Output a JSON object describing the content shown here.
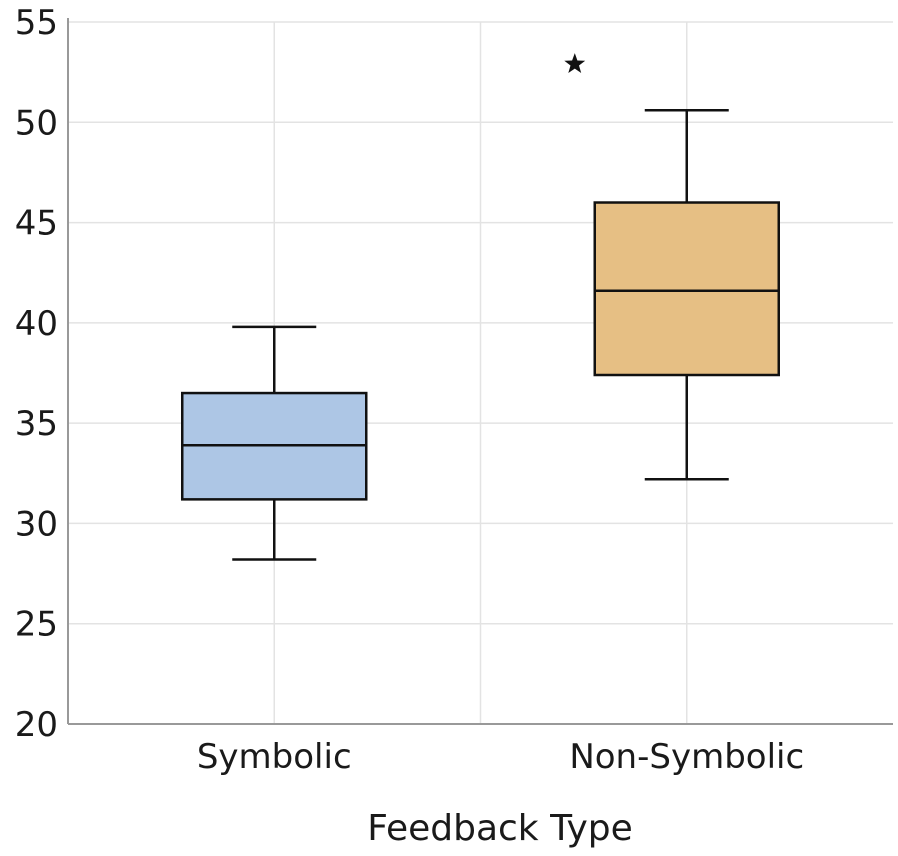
{
  "chart_data": {
    "type": "boxplot",
    "title": "",
    "xlabel": "Feedback Type",
    "ylabel": "",
    "ylim": [
      20,
      55
    ],
    "yticks": [
      20,
      25,
      30,
      35,
      40,
      45,
      50,
      55
    ],
    "grid": true,
    "categories": [
      "Symbolic",
      "Non-Symbolic"
    ],
    "boxes": [
      {
        "category": "Symbolic",
        "whisker_low": 28.2,
        "q1": 31.2,
        "median": 33.9,
        "q3": 36.5,
        "whisker_high": 39.8,
        "outliers": [],
        "color": "#adc6e5"
      },
      {
        "category": "Non-Symbolic",
        "whisker_low": 32.2,
        "q1": 37.4,
        "median": 41.6,
        "q3": 46.0,
        "whisker_high": 50.6,
        "outliers": [
          52.9
        ],
        "color": "#e6bf84"
      }
    ],
    "outlier_marker": "star"
  }
}
